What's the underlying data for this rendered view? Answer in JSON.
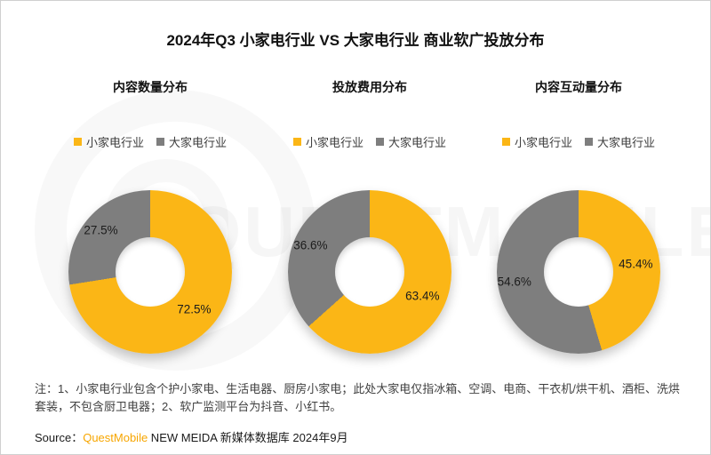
{
  "title": "2024年Q3 小家电行业 VS 大家电行业 商业软广投放分布",
  "watermark": {
    "text": "QUESTMOBILE"
  },
  "colors": {
    "small_appliance_yellow": "#FBB616",
    "large_appliance_gray": "#7E7E7E",
    "brand_orange": "#F7A600",
    "title_text": "#111111",
    "note_text": "#3F3F3F"
  },
  "legend": {
    "series1": "小家电行业",
    "series2": "大家电行业"
  },
  "chart_data": [
    {
      "type": "pie",
      "subtype": "donut",
      "title": "内容数量分布",
      "labels": [
        "小家电行业",
        "大家电行业"
      ],
      "values": [
        72.5,
        27.5
      ],
      "value_labels": [
        "72.5%",
        "27.5%"
      ],
      "colors": [
        "#FBB616",
        "#7E7E7E"
      ],
      "start_angle_deg": 0,
      "direction": "clockwise",
      "legend_position": "top"
    },
    {
      "type": "pie",
      "subtype": "donut",
      "title": "投放费用分布",
      "labels": [
        "小家电行业",
        "大家电行业"
      ],
      "values": [
        63.4,
        36.6
      ],
      "value_labels": [
        "63.4%",
        "36.6%"
      ],
      "colors": [
        "#FBB616",
        "#7E7E7E"
      ],
      "start_angle_deg": 0,
      "direction": "clockwise",
      "legend_position": "top"
    },
    {
      "type": "pie",
      "subtype": "donut",
      "title": "内容互动量分布",
      "labels": [
        "小家电行业",
        "大家电行业"
      ],
      "values": [
        45.4,
        54.6
      ],
      "value_labels": [
        "45.4%",
        "54.6%"
      ],
      "colors": [
        "#FBB616",
        "#7E7E7E"
      ],
      "start_angle_deg": 0,
      "direction": "clockwise",
      "legend_position": "top"
    }
  ],
  "note": "注：1、小家电行业包含个护小家电、生活电器、厨房小家电；此处大家电仅指冰箱、空调、电商、干衣机/烘干机、酒柜、洗烘套装，不包含厨卫电器；2、软广监测平台为抖音、小红书。",
  "source": {
    "prefix": "Source：",
    "brand": "QuestMobile",
    "suffix": " NEW MEIDA 新媒体数据库 2024年9月"
  }
}
